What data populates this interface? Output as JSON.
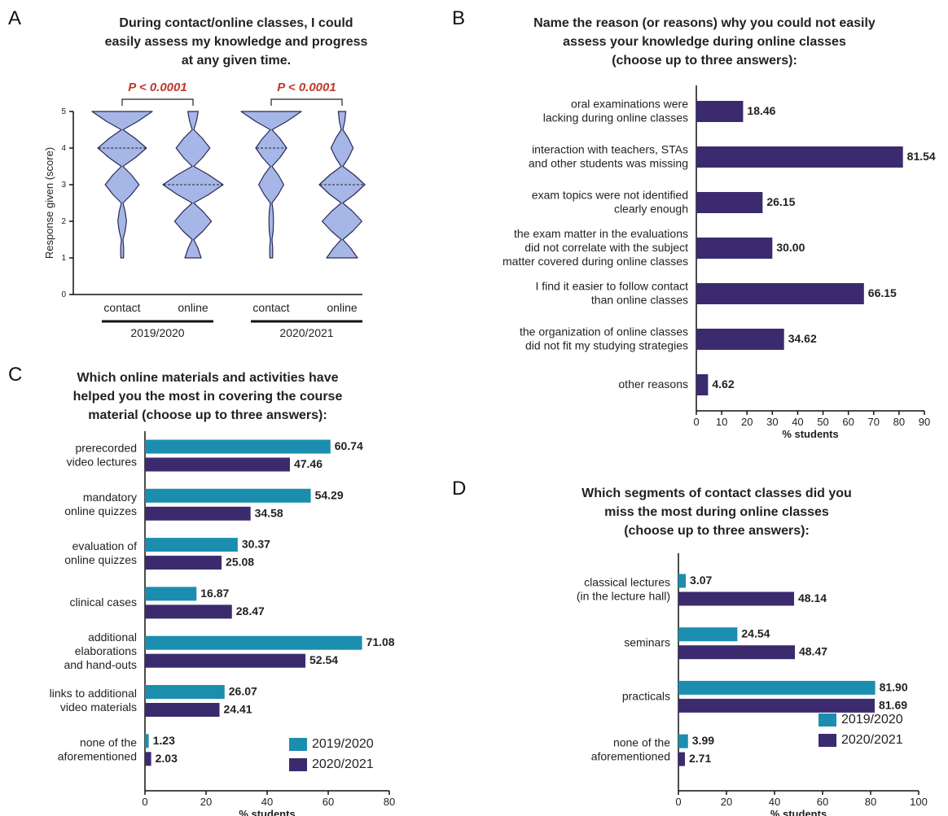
{
  "chart_data": [
    {
      "type": "violin",
      "panel": "A",
      "title": "During contact/online classes, I could\neasily assess my knowledge and progress\nat any given time.",
      "ylabel": "Response given (score)",
      "categories": [
        "contact",
        "online",
        "contact",
        "online"
      ],
      "groups": [
        "2019/2020",
        "2020/2021"
      ],
      "annotations": [
        "P < 0.0001",
        "P < 0.0001"
      ],
      "levels": [
        1,
        2,
        3,
        4,
        5
      ],
      "densities": [
        [
          0.02,
          0.12,
          0.55,
          0.8,
          1.0
        ],
        [
          0.25,
          0.6,
          1.0,
          0.55,
          0.15
        ],
        [
          0.02,
          0.05,
          0.4,
          0.5,
          1.0
        ],
        [
          0.5,
          0.65,
          0.75,
          0.35,
          0.1
        ]
      ],
      "medians": [
        4,
        3,
        4,
        3
      ],
      "color": "#a6b6e6",
      "ylim": [
        0,
        5
      ],
      "yticks": [
        0,
        1,
        2,
        3,
        4,
        5
      ]
    },
    {
      "type": "bar",
      "orientation": "horizontal",
      "panel": "B",
      "title": "Name the reason (or reasons) why you could not easily\nassess your knowledge during online classes\n(choose up to three answers):",
      "xlabel": "% students",
      "categories": [
        "oral examinations were\nlacking during online classes",
        "interaction with teachers, STAs\nand other students was missing",
        "exam topics were not identified\nclearly enough",
        "the exam matter in the evaluations\ndid not correlate with the subject\nmatter covered during online classes",
        "I find it easier to follow contact\nthan online classes",
        "the organization of online classes\ndid not fit my studying strategies",
        "other reasons"
      ],
      "values": [
        18.46,
        81.54,
        26.15,
        30.0,
        66.15,
        34.62,
        4.62
      ],
      "value_labels": [
        "18.46",
        "81.54",
        "26.15",
        "30.00",
        "66.15",
        "34.62",
        "4.62"
      ],
      "color": "#3b2b6e",
      "xlim": [
        0,
        90
      ],
      "xticks": [
        0,
        10,
        20,
        30,
        40,
        50,
        60,
        70,
        80,
        90
      ]
    },
    {
      "type": "bar",
      "orientation": "horizontal",
      "panel": "C",
      "title": "Which online materials and activities have\nhelped you the most in covering the course\nmaterial (choose up to three answers):",
      "xlabel": "% students",
      "categories": [
        "prerecorded\nvideo lectures",
        "mandatory\nonline quizzes",
        "evaluation of\nonline quizzes",
        "clinical cases",
        "additional\nelaborations\nand hand-outs",
        "links to additional\nvideo materials",
        "none of the\naforementioned"
      ],
      "series": [
        {
          "name": "2019/2020",
          "color": "#1b8eb0",
          "values": [
            60.74,
            54.29,
            30.37,
            16.87,
            71.08,
            26.07,
            1.23
          ]
        },
        {
          "name": "2020/2021",
          "color": "#3b2b6e",
          "values": [
            47.46,
            34.58,
            25.08,
            28.47,
            52.54,
            24.41,
            2.03
          ]
        }
      ],
      "legend": "lower right",
      "xlim": [
        0,
        80
      ],
      "xticks": [
        0,
        20,
        40,
        60,
        80
      ]
    },
    {
      "type": "bar",
      "orientation": "horizontal",
      "panel": "D",
      "title": "Which segments of contact classes did you\nmiss the most during online classes\n(choose up to three answers):",
      "xlabel": "% students",
      "categories": [
        "classical lectures\n(in the lecture hall)",
        "seminars",
        "practicals",
        "none of the\naforementioned"
      ],
      "series": [
        {
          "name": "2019/2020",
          "color": "#1b8eb0",
          "values": [
            3.07,
            24.54,
            81.9,
            3.99
          ],
          "value_labels": [
            "3.07",
            "24.54",
            "81.90",
            "3.99"
          ]
        },
        {
          "name": "2020/2021",
          "color": "#3b2b6e",
          "values": [
            48.14,
            48.47,
            81.69,
            2.71
          ]
        }
      ],
      "legend": "lower right",
      "xlim": [
        0,
        100
      ],
      "xticks": [
        0,
        20,
        40,
        60,
        80,
        100
      ]
    }
  ]
}
